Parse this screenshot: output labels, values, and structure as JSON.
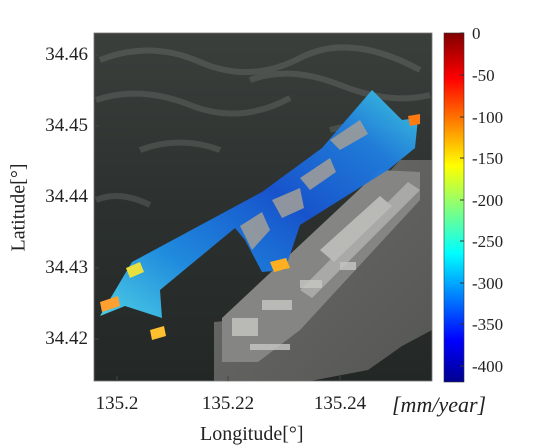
{
  "map": {
    "xlabel": "Longitude[°]",
    "ylabel": "Latitude[°]",
    "x_ticks": [
      "135.2",
      "135.22",
      "135.24"
    ],
    "y_ticks": [
      "34.46",
      "34.45",
      "34.44",
      "34.43",
      "34.42"
    ],
    "basemap": "satellite imagery (sea, offshore airport island)",
    "overlay": "InSAR subsidence velocity points",
    "colorbar": {
      "ticks": [
        "0",
        "-50",
        "-100",
        "-150",
        "-200",
        "-250",
        "-300",
        "-350",
        "-400"
      ],
      "range": [
        -420,
        0
      ],
      "colormap": "jet",
      "unit": "[mm/year]"
    }
  },
  "colors": {
    "sea": "#2a2f2d",
    "runway": "#9a9a98",
    "cb_low": "#00008f",
    "cb_high": "#800000"
  }
}
